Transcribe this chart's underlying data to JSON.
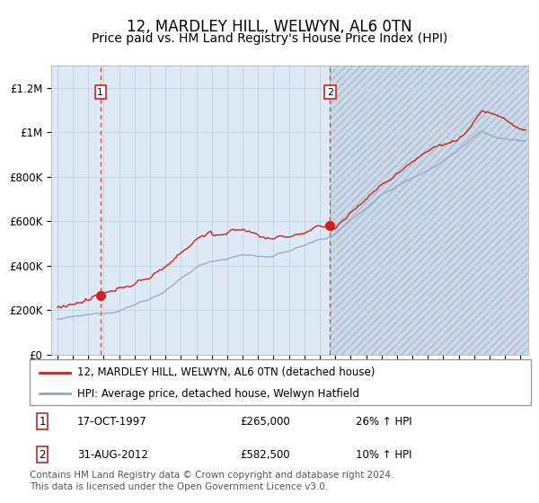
{
  "title": "12, MARDLEY HILL, WELWYN, AL6 0TN",
  "subtitle": "Price paid vs. HM Land Registry's House Price Index (HPI)",
  "title_fontsize": 12,
  "subtitle_fontsize": 10,
  "background_color": "#ffffff",
  "plot_bg_color": "#ddeaf6",
  "hatch_bg_color": "#ccd9e8",
  "grid_color": "#c8d8e8",
  "red_line_color": "#cc2222",
  "blue_line_color": "#88aacc",
  "sale1_date_num": 1997.79,
  "sale1_price": 265000,
  "sale1_label": "17-OCT-1997",
  "sale1_hpi_pct": "26% ↑ HPI",
  "sale2_date_num": 2012.66,
  "sale2_price": 582500,
  "sale2_label": "31-AUG-2012",
  "sale2_hpi_pct": "10% ↑ HPI",
  "ylabel_ticks": [
    "£0",
    "£200K",
    "£400K",
    "£600K",
    "£800K",
    "£1M",
    "£1.2M"
  ],
  "ylabel_values": [
    0,
    200000,
    400000,
    600000,
    800000,
    1000000,
    1200000
  ],
  "ylim": [
    0,
    1300000
  ],
  "xlim_start": 1994.6,
  "xlim_end": 2025.5,
  "legend_line1": "12, MARDLEY HILL, WELWYN, AL6 0TN (detached house)",
  "legend_line2": "HPI: Average price, detached house, Welwyn Hatfield",
  "footer": "Contains HM Land Registry data © Crown copyright and database right 2024.\nThis data is licensed under the Open Government Licence v3.0.",
  "footer_fontsize": 7.5
}
